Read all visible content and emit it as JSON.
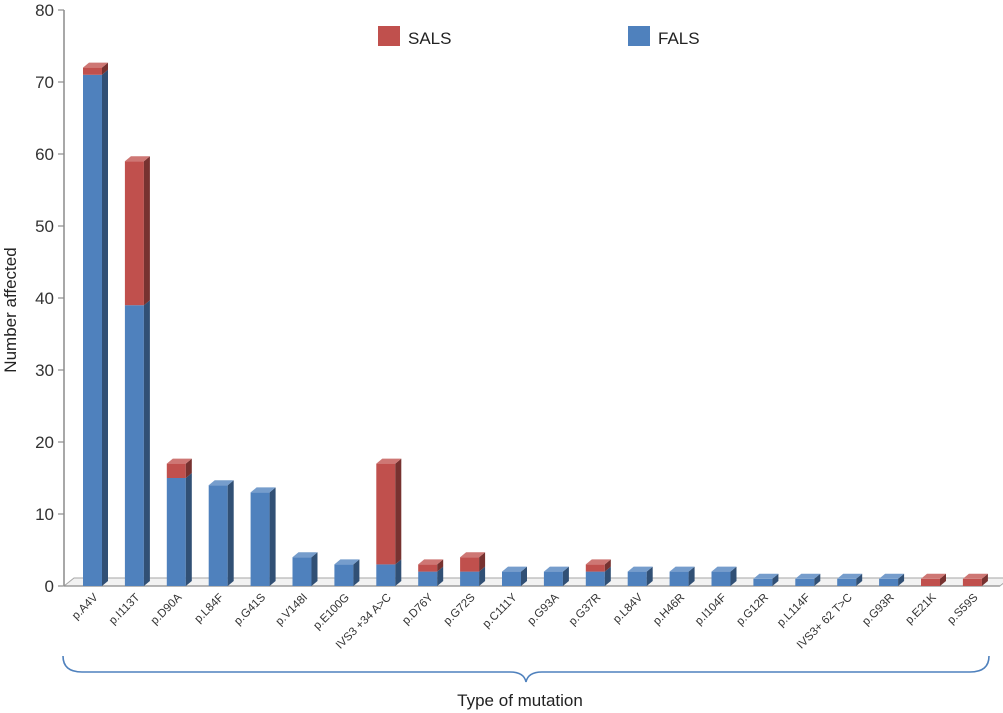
{
  "chart_data": {
    "type": "bar",
    "stacked": true,
    "three_d": true,
    "xlabel": "Type of mutation",
    "ylabel": "Number affected",
    "ylim": [
      0,
      80
    ],
    "yticks": [
      0,
      10,
      20,
      30,
      40,
      50,
      60,
      70,
      80
    ],
    "grid": false,
    "legend_position": "top",
    "categories": [
      "p.A4V",
      "p.I113T",
      "p.D90A",
      "p.L84F",
      "p.G41S",
      "p.V148I",
      "p.E100G",
      "IVS3 +34 A>C",
      "p.D76Y",
      "p.G72S",
      "p.C111Y",
      "p.G93A",
      "p.G37R",
      "p.L84V",
      "p.H46R",
      "p.I104F",
      "p.G12R",
      "p.L114F",
      "IVS3+ 62 T>C",
      "p.G93R",
      "p.E21K",
      "p.S59S"
    ],
    "series": [
      {
        "name": "FALS",
        "color": "#4f81bd",
        "values": [
          71,
          39,
          15,
          14,
          13,
          4,
          3,
          3,
          2,
          2,
          2,
          2,
          2,
          2,
          2,
          2,
          1,
          1,
          1,
          1,
          0,
          0
        ]
      },
      {
        "name": "SALS",
        "color": "#c0504d",
        "values": [
          1,
          20,
          2,
          0,
          0,
          0,
          0,
          14,
          1,
          2,
          0,
          0,
          1,
          0,
          0,
          0,
          0,
          0,
          0,
          0,
          1,
          1
        ]
      }
    ],
    "legend": [
      "SALS",
      "FALS"
    ]
  }
}
